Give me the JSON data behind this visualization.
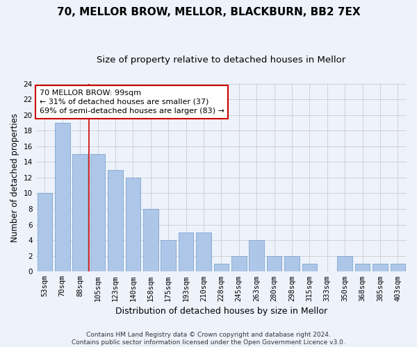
{
  "title": "70, MELLOR BROW, MELLOR, BLACKBURN, BB2 7EX",
  "subtitle": "Size of property relative to detached houses in Mellor",
  "xlabel": "Distribution of detached houses by size in Mellor",
  "ylabel": "Number of detached properties",
  "categories": [
    "53sqm",
    "70sqm",
    "88sqm",
    "105sqm",
    "123sqm",
    "140sqm",
    "158sqm",
    "175sqm",
    "193sqm",
    "210sqm",
    "228sqm",
    "245sqm",
    "263sqm",
    "280sqm",
    "298sqm",
    "315sqm",
    "333sqm",
    "350sqm",
    "368sqm",
    "385sqm",
    "403sqm"
  ],
  "values": [
    10,
    19,
    15,
    15,
    13,
    12,
    8,
    4,
    5,
    5,
    1,
    2,
    4,
    2,
    2,
    1,
    0,
    2,
    1,
    1,
    1
  ],
  "bar_color": "#aec6e8",
  "bar_edge_color": "#7ba7cf",
  "reference_line_color": "#cc0000",
  "annotation_text": "70 MELLOR BROW: 99sqm\n← 31% of detached houses are smaller (37)\n69% of semi-detached houses are larger (83) →",
  "annotation_box_color": "#ffffff",
  "annotation_box_edgecolor": "#cc0000",
  "ylim": [
    0,
    24
  ],
  "yticks": [
    0,
    2,
    4,
    6,
    8,
    10,
    12,
    14,
    16,
    18,
    20,
    22,
    24
  ],
  "grid_color": "#cccccc",
  "bg_color": "#eef2fb",
  "footer": "Contains HM Land Registry data © Crown copyright and database right 2024.\nContains public sector information licensed under the Open Government Licence v3.0.",
  "title_fontsize": 11,
  "subtitle_fontsize": 9.5,
  "xlabel_fontsize": 9,
  "ylabel_fontsize": 8.5,
  "tick_fontsize": 7.5,
  "footer_fontsize": 6.5,
  "annotation_fontsize": 8
}
